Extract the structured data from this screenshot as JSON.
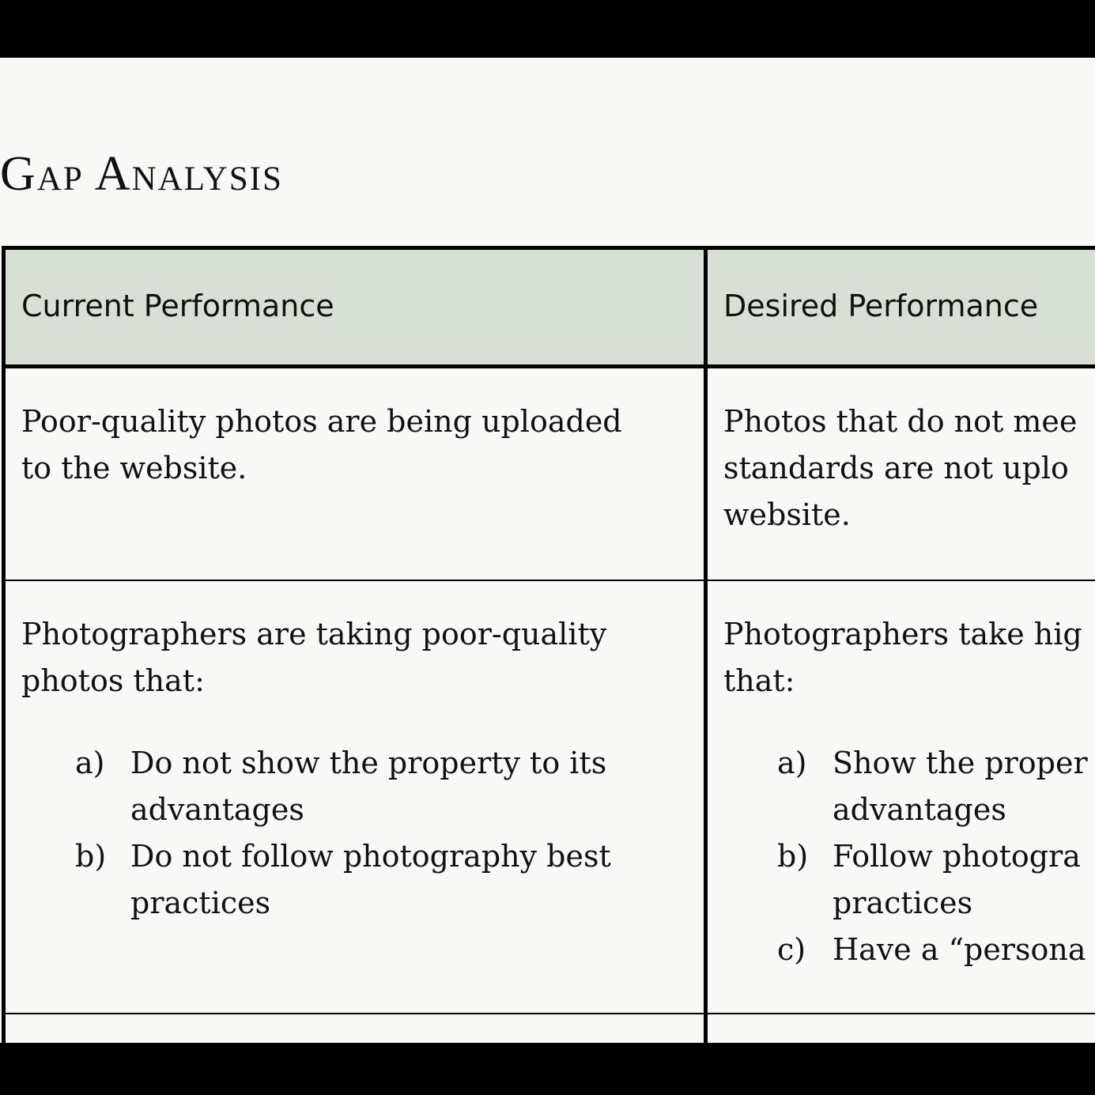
{
  "title": "Gap Analysis",
  "table": {
    "headers": [
      "Current Performance",
      "Desired Performance"
    ],
    "rows": [
      {
        "current": {
          "lines": [
            "Poor-quality photos are being uploaded",
            "to the website."
          ]
        },
        "desired": {
          "lines": [
            "Photos that do not mee",
            "standards are not uplo",
            "website."
          ]
        }
      },
      {
        "current": {
          "lines": [
            "Photographers are taking poor-quality",
            "photos that:"
          ],
          "items": [
            {
              "marker": "a)",
              "lines": [
                "Do not show the property to its",
                "advantages"
              ]
            },
            {
              "marker": "b)",
              "lines": [
                "Do not follow photography best",
                "practices"
              ]
            }
          ]
        },
        "desired": {
          "lines": [
            "Photographers take hig",
            "that:"
          ],
          "items": [
            {
              "marker": "a)",
              "lines": [
                "Show the proper",
                "advantages"
              ]
            },
            {
              "marker": "b)",
              "lines": [
                "Follow photogra",
                "practices"
              ]
            },
            {
              "marker": "c)",
              "lines": [
                "Have a “persona"
              ]
            }
          ]
        }
      }
    ]
  }
}
